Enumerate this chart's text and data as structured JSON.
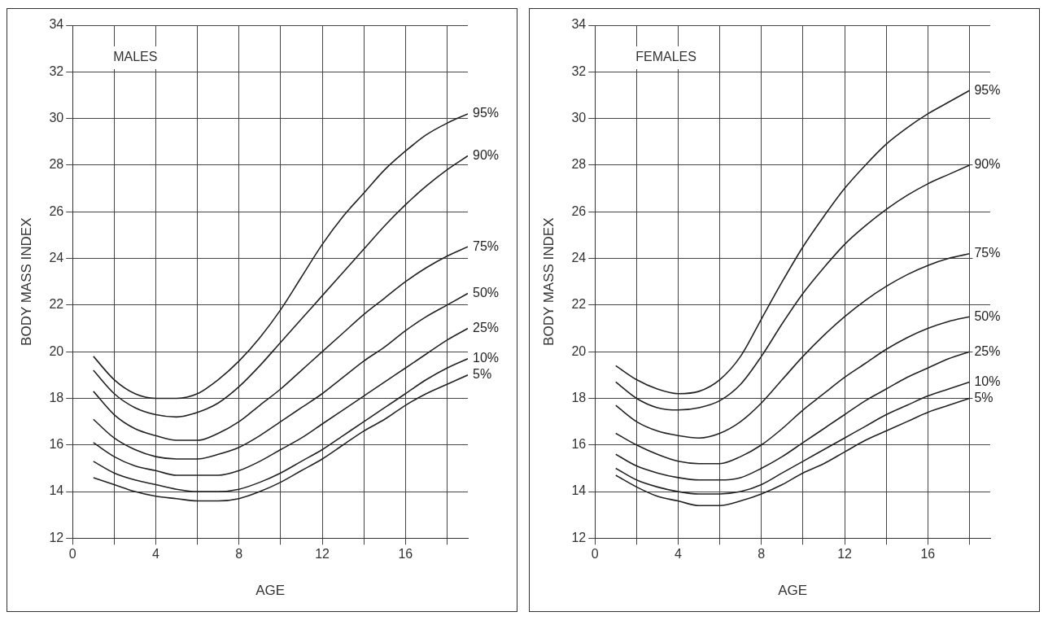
{
  "chart_data": [
    {
      "type": "line",
      "title": "MALES",
      "xlabel": "AGE",
      "ylabel": "BODY MASS INDEX",
      "x": [
        1,
        2,
        3,
        4,
        5,
        6,
        7,
        8,
        9,
        10,
        11,
        12,
        13,
        14,
        15,
        16,
        17,
        18,
        19
      ],
      "xlim": [
        0,
        19
      ],
      "xticks": [
        0,
        {
          "value": 2,
          "label": null
        },
        4,
        {
          "value": 6,
          "label": null
        },
        8,
        {
          "value": 10,
          "label": null
        },
        12,
        {
          "value": 14,
          "label": null
        },
        16,
        {
          "value": 18,
          "label": null
        }
      ],
      "ylim": [
        12,
        34
      ],
      "yticks": [
        12,
        14,
        16,
        18,
        20,
        22,
        24,
        26,
        28,
        30,
        32,
        34
      ],
      "grid": true,
      "marker": "none",
      "line_style": "solid",
      "series": [
        {
          "name": "95%",
          "color": "#222222",
          "values": [
            19.8,
            18.8,
            18.2,
            18.0,
            18.0,
            18.2,
            18.8,
            19.6,
            20.6,
            21.8,
            23.2,
            24.6,
            25.8,
            26.8,
            27.8,
            28.6,
            29.3,
            29.8,
            30.2
          ]
        },
        {
          "name": "90%",
          "color": "#222222",
          "values": [
            19.2,
            18.2,
            17.6,
            17.3,
            17.2,
            17.4,
            17.8,
            18.5,
            19.4,
            20.4,
            21.4,
            22.4,
            23.4,
            24.4,
            25.4,
            26.3,
            27.1,
            27.8,
            28.4
          ]
        },
        {
          "name": "75%",
          "color": "#222222",
          "values": [
            18.3,
            17.3,
            16.7,
            16.4,
            16.2,
            16.2,
            16.5,
            17.0,
            17.7,
            18.4,
            19.2,
            20.0,
            20.8,
            21.6,
            22.3,
            23.0,
            23.6,
            24.1,
            24.5
          ]
        },
        {
          "name": "50%",
          "color": "#222222",
          "values": [
            17.1,
            16.3,
            15.8,
            15.5,
            15.4,
            15.4,
            15.6,
            15.9,
            16.4,
            17.0,
            17.6,
            18.2,
            18.9,
            19.6,
            20.2,
            20.9,
            21.5,
            22.0,
            22.5
          ]
        },
        {
          "name": "25%",
          "color": "#222222",
          "values": [
            16.1,
            15.5,
            15.1,
            14.9,
            14.7,
            14.7,
            14.7,
            14.9,
            15.3,
            15.8,
            16.3,
            16.9,
            17.5,
            18.1,
            18.7,
            19.3,
            19.9,
            20.5,
            21.0
          ]
        },
        {
          "name": "10%",
          "color": "#222222",
          "values": [
            15.3,
            14.8,
            14.5,
            14.3,
            14.1,
            14.0,
            14.0,
            14.1,
            14.4,
            14.8,
            15.3,
            15.8,
            16.4,
            17.0,
            17.6,
            18.2,
            18.8,
            19.3,
            19.7
          ]
        },
        {
          "name": "5%",
          "color": "#222222",
          "values": [
            14.6,
            14.3,
            14.0,
            13.8,
            13.7,
            13.6,
            13.6,
            13.7,
            14.0,
            14.4,
            14.9,
            15.4,
            16.0,
            16.6,
            17.1,
            17.7,
            18.2,
            18.6,
            19.0
          ]
        }
      ]
    },
    {
      "type": "line",
      "title": "FEMALES",
      "xlabel": "AGE",
      "ylabel": "BODY MASS INDEX",
      "x": [
        1,
        2,
        3,
        4,
        5,
        6,
        7,
        8,
        9,
        10,
        11,
        12,
        13,
        14,
        15,
        16,
        17,
        18
      ],
      "xlim": [
        0,
        19
      ],
      "xticks": [
        0,
        {
          "value": 2,
          "label": null
        },
        4,
        {
          "value": 6,
          "label": null
        },
        8,
        {
          "value": 10,
          "label": null
        },
        12,
        {
          "value": 14,
          "label": null
        },
        16,
        {
          "value": 18,
          "label": null
        }
      ],
      "ylim": [
        12,
        34
      ],
      "yticks": [
        12,
        14,
        16,
        18,
        20,
        22,
        24,
        26,
        28,
        30,
        32,
        34
      ],
      "grid": true,
      "marker": "none",
      "line_style": "solid",
      "series": [
        {
          "name": "95%",
          "color": "#222222",
          "values": [
            19.4,
            18.8,
            18.4,
            18.2,
            18.3,
            18.8,
            19.8,
            21.4,
            23.0,
            24.5,
            25.8,
            27.0,
            28.0,
            28.9,
            29.6,
            30.2,
            30.7,
            31.2
          ]
        },
        {
          "name": "90%",
          "color": "#222222",
          "values": [
            18.7,
            18.0,
            17.6,
            17.5,
            17.6,
            17.9,
            18.6,
            19.8,
            21.2,
            22.5,
            23.6,
            24.6,
            25.4,
            26.1,
            26.7,
            27.2,
            27.6,
            28.0
          ]
        },
        {
          "name": "75%",
          "color": "#222222",
          "values": [
            17.7,
            17.0,
            16.6,
            16.4,
            16.3,
            16.5,
            17.0,
            17.8,
            18.8,
            19.8,
            20.7,
            21.5,
            22.2,
            22.8,
            23.3,
            23.7,
            24.0,
            24.2
          ]
        },
        {
          "name": "50%",
          "color": "#222222",
          "values": [
            16.5,
            16.0,
            15.6,
            15.3,
            15.2,
            15.2,
            15.5,
            16.0,
            16.7,
            17.5,
            18.2,
            18.9,
            19.5,
            20.1,
            20.6,
            21.0,
            21.3,
            21.5
          ]
        },
        {
          "name": "25%",
          "color": "#222222",
          "values": [
            15.6,
            15.1,
            14.8,
            14.6,
            14.5,
            14.5,
            14.6,
            15.0,
            15.5,
            16.1,
            16.7,
            17.3,
            17.9,
            18.4,
            18.9,
            19.3,
            19.7,
            20.0
          ]
        },
        {
          "name": "10%",
          "color": "#222222",
          "values": [
            15.0,
            14.5,
            14.2,
            14.0,
            13.9,
            13.9,
            14.0,
            14.3,
            14.8,
            15.3,
            15.8,
            16.3,
            16.8,
            17.3,
            17.7,
            18.1,
            18.4,
            18.7
          ]
        },
        {
          "name": "5%",
          "color": "#222222",
          "values": [
            14.7,
            14.2,
            13.8,
            13.6,
            13.4,
            13.4,
            13.6,
            13.9,
            14.3,
            14.8,
            15.2,
            15.7,
            16.2,
            16.6,
            17.0,
            17.4,
            17.7,
            18.0
          ]
        }
      ]
    }
  ]
}
